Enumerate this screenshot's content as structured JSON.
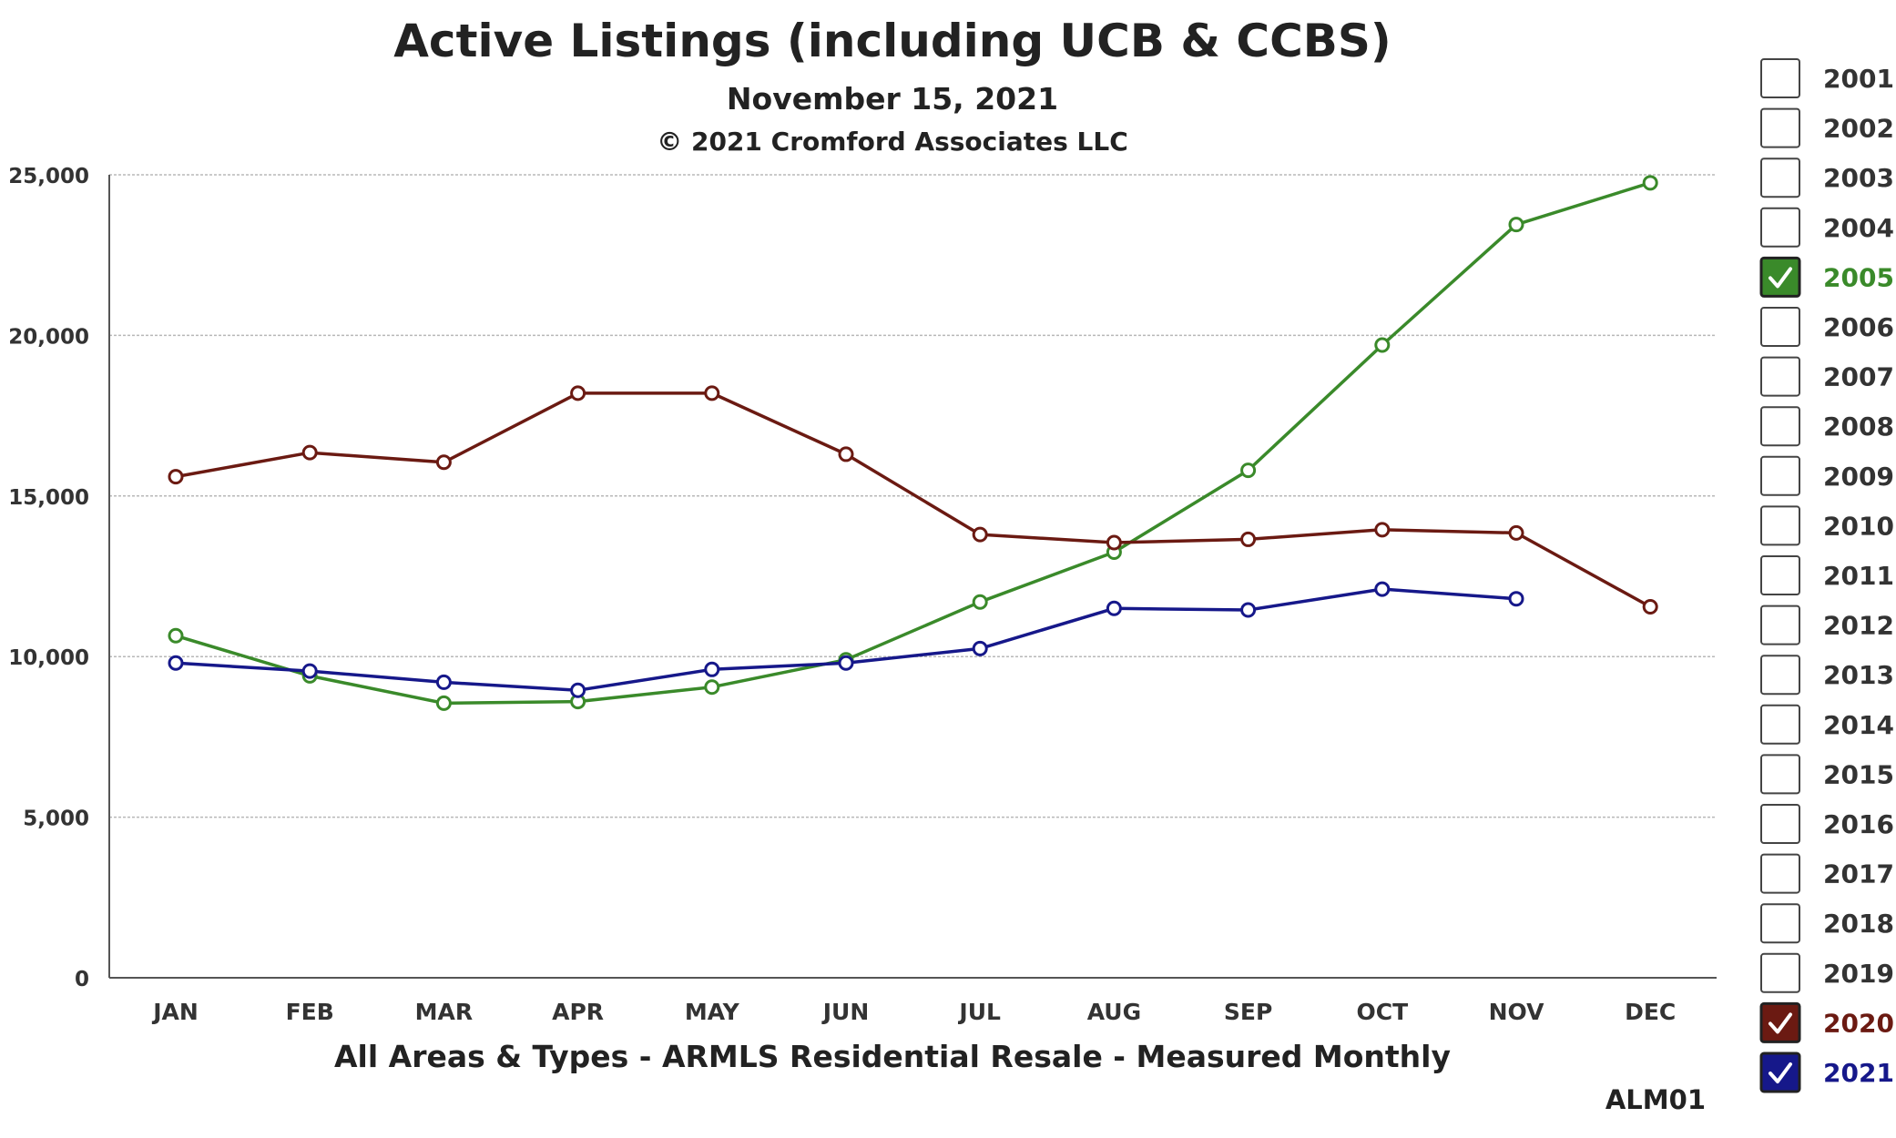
{
  "chart_data": {
    "type": "line",
    "title": "Active Listings (including UCB & CCBS)",
    "subtitle": "November 15, 2021",
    "copyright": "© 2021 Cromford Associates LLC",
    "xlabel": "All Areas & Types - ARMLS Residential Resale - Measured Monthly",
    "ylabel": "",
    "chart_code": "ALM01",
    "categories": [
      "JAN",
      "FEB",
      "MAR",
      "APR",
      "MAY",
      "JUN",
      "JUL",
      "AUG",
      "SEP",
      "OCT",
      "NOV",
      "DEC"
    ],
    "ylim": [
      0,
      25000
    ],
    "yticks": [
      0,
      5000,
      10000,
      15000,
      20000,
      25000
    ],
    "ytick_labels": [
      "0",
      "5,000",
      "10,000",
      "15,000",
      "20,000",
      "25,000"
    ],
    "grid": true,
    "legend_position": "right",
    "series": [
      {
        "name": "2005",
        "color": "#3a8a2a",
        "values": [
          10650,
          9400,
          8550,
          8600,
          9050,
          9900,
          11700,
          13250,
          15800,
          19700,
          23450,
          24750
        ]
      },
      {
        "name": "2020",
        "color": "#6b1a12",
        "values": [
          15600,
          16350,
          16050,
          18200,
          18200,
          16300,
          13800,
          13550,
          13650,
          13950,
          13850,
          11550
        ]
      },
      {
        "name": "2021",
        "color": "#16188a",
        "values": [
          9800,
          9550,
          9200,
          8950,
          9600,
          9800,
          10250,
          11500,
          11450,
          12100,
          11800,
          null
        ]
      }
    ],
    "legend": [
      {
        "label": "2001",
        "checked": false
      },
      {
        "label": "2002",
        "checked": false
      },
      {
        "label": "2003",
        "checked": false
      },
      {
        "label": "2004",
        "checked": false
      },
      {
        "label": "2005",
        "checked": true,
        "color": "#3a8a2a"
      },
      {
        "label": "2006",
        "checked": false
      },
      {
        "label": "2007",
        "checked": false
      },
      {
        "label": "2008",
        "checked": false
      },
      {
        "label": "2009",
        "checked": false
      },
      {
        "label": "2010",
        "checked": false
      },
      {
        "label": "2011",
        "checked": false
      },
      {
        "label": "2012",
        "checked": false
      },
      {
        "label": "2013",
        "checked": false
      },
      {
        "label": "2014",
        "checked": false
      },
      {
        "label": "2015",
        "checked": false
      },
      {
        "label": "2016",
        "checked": false
      },
      {
        "label": "2017",
        "checked": false
      },
      {
        "label": "2018",
        "checked": false
      },
      {
        "label": "2019",
        "checked": false
      },
      {
        "label": "2020",
        "checked": true,
        "color": "#6b1a12"
      },
      {
        "label": "2021",
        "checked": true,
        "color": "#16188a"
      }
    ],
    "colors": {
      "text": "#222222",
      "axis_label": "#7a1f1a",
      "code": "#666666",
      "grid": "#b8b8b8",
      "unchecked_label": "#333333"
    }
  }
}
